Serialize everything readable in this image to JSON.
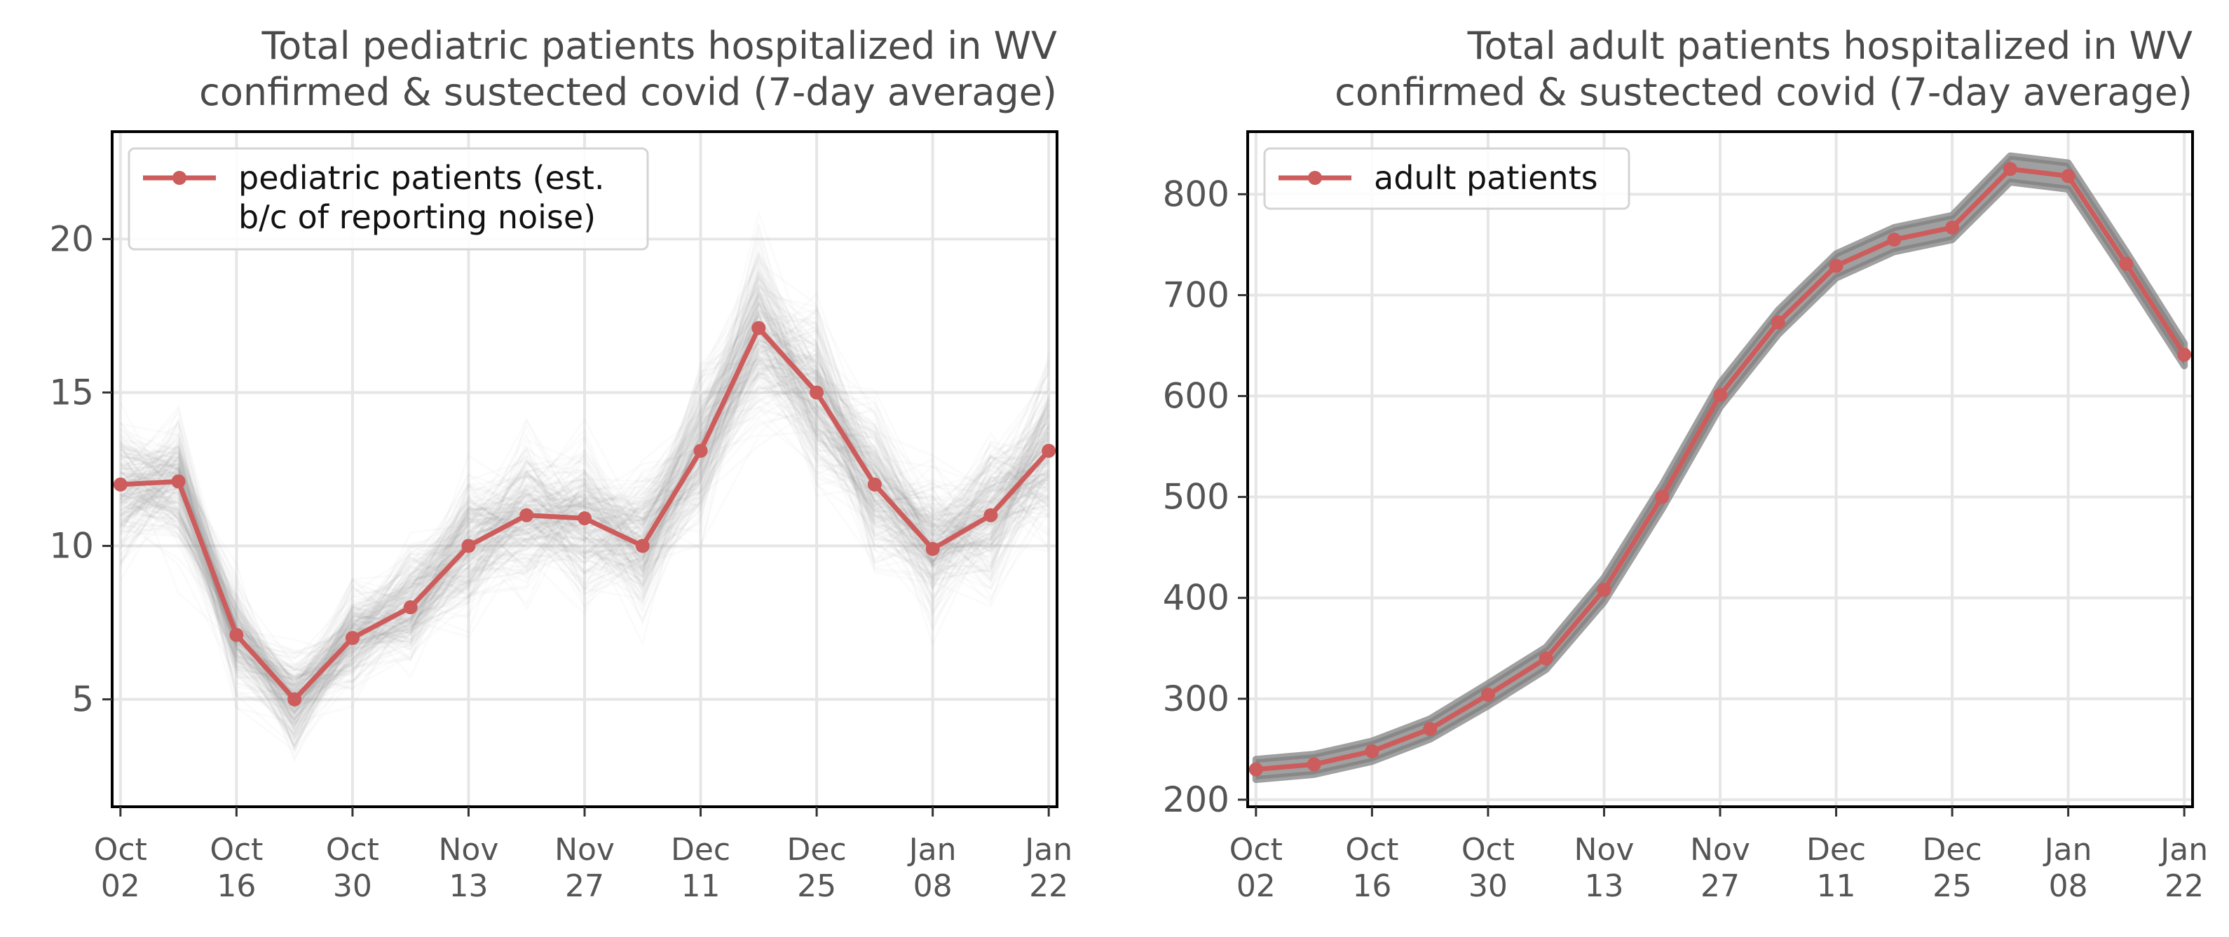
{
  "colors": {
    "series": "#cd5c5c",
    "band": "#808080",
    "grid": "#e6e6e6",
    "frame": "#000000"
  },
  "chart_data": [
    {
      "type": "line",
      "title": "Total pediatric patients hospitalized in WV\nconfirmed & sustected covid (7-day average)",
      "xlabel": "",
      "ylabel": "",
      "x": [
        "2020-10-02",
        "2020-10-09",
        "2020-10-16",
        "2020-10-23",
        "2020-10-30",
        "2020-11-06",
        "2020-11-13",
        "2020-11-20",
        "2020-11-27",
        "2020-12-04",
        "2020-12-11",
        "2020-12-18",
        "2020-12-25",
        "2021-01-01",
        "2021-01-08",
        "2021-01-15",
        "2021-01-22"
      ],
      "x_ticks": [
        {
          "date": "2020-10-02",
          "label": "Oct\n02"
        },
        {
          "date": "2020-10-16",
          "label": "Oct\n16"
        },
        {
          "date": "2020-10-30",
          "label": "Oct\n30"
        },
        {
          "date": "2020-11-13",
          "label": "Nov\n13"
        },
        {
          "date": "2020-11-27",
          "label": "Nov\n27"
        },
        {
          "date": "2020-12-11",
          "label": "Dec\n11"
        },
        {
          "date": "2020-12-25",
          "label": "Dec\n25"
        },
        {
          "date": "2021-01-08",
          "label": "Jan\n08"
        },
        {
          "date": "2021-01-22",
          "label": "Jan\n22"
        }
      ],
      "xlim": [
        "2020-10-01",
        "2021-01-23"
      ],
      "ylim": [
        1.5,
        23.5
      ],
      "y_ticks": [
        5,
        10,
        15,
        20
      ],
      "grid": true,
      "legend_position": "top-left",
      "series": [
        {
          "name": "pediatric patients (est.\nb/c of reporting noise)",
          "values": [
            12.0,
            12.1,
            7.1,
            5.0,
            7.0,
            8.0,
            10.0,
            11.0,
            10.9,
            10.0,
            13.1,
            17.1,
            15.0,
            12.0,
            9.9,
            11.0,
            13.1
          ]
        }
      ],
      "band_spread": [
        2.6,
        2.6,
        2.2,
        1.9,
        2.1,
        2.3,
        2.7,
        2.8,
        2.8,
        2.8,
        3.2,
        3.9,
        3.5,
        3.0,
        2.7,
        2.8,
        3.2
      ]
    },
    {
      "type": "line",
      "title": "Total adult patients hospitalized in WV\nconfirmed & sustected covid (7-day average)",
      "xlabel": "",
      "ylabel": "",
      "x": [
        "2020-10-02",
        "2020-10-09",
        "2020-10-16",
        "2020-10-23",
        "2020-10-30",
        "2020-11-06",
        "2020-11-13",
        "2020-11-20",
        "2020-11-27",
        "2020-12-04",
        "2020-12-11",
        "2020-12-18",
        "2020-12-25",
        "2021-01-01",
        "2021-01-08",
        "2021-01-15",
        "2021-01-22"
      ],
      "x_ticks": [
        {
          "date": "2020-10-02",
          "label": "Oct\n02"
        },
        {
          "date": "2020-10-16",
          "label": "Oct\n16"
        },
        {
          "date": "2020-10-30",
          "label": "Oct\n30"
        },
        {
          "date": "2020-11-13",
          "label": "Nov\n13"
        },
        {
          "date": "2020-11-27",
          "label": "Nov\n27"
        },
        {
          "date": "2020-12-11",
          "label": "Dec\n11"
        },
        {
          "date": "2020-12-25",
          "label": "Dec\n25"
        },
        {
          "date": "2021-01-08",
          "label": "Jan\n08"
        },
        {
          "date": "2021-01-22",
          "label": "Jan\n22"
        }
      ],
      "xlim": [
        "2020-10-01",
        "2021-01-23"
      ],
      "ylim": [
        193,
        862
      ],
      "y_ticks": [
        200,
        300,
        400,
        500,
        600,
        700,
        800
      ],
      "grid": true,
      "legend_position": "top-left",
      "series": [
        {
          "name": "adult patients",
          "values": [
            230,
            235,
            248,
            270,
            304,
            340,
            408,
            500,
            601,
            673,
            729,
            755,
            767,
            825,
            818,
            731,
            641
          ]
        }
      ],
      "band_spread": [
        10,
        10,
        10,
        10,
        11,
        11,
        12,
        12,
        12,
        12,
        12,
        12,
        12,
        13,
        13,
        12,
        11
      ]
    }
  ]
}
